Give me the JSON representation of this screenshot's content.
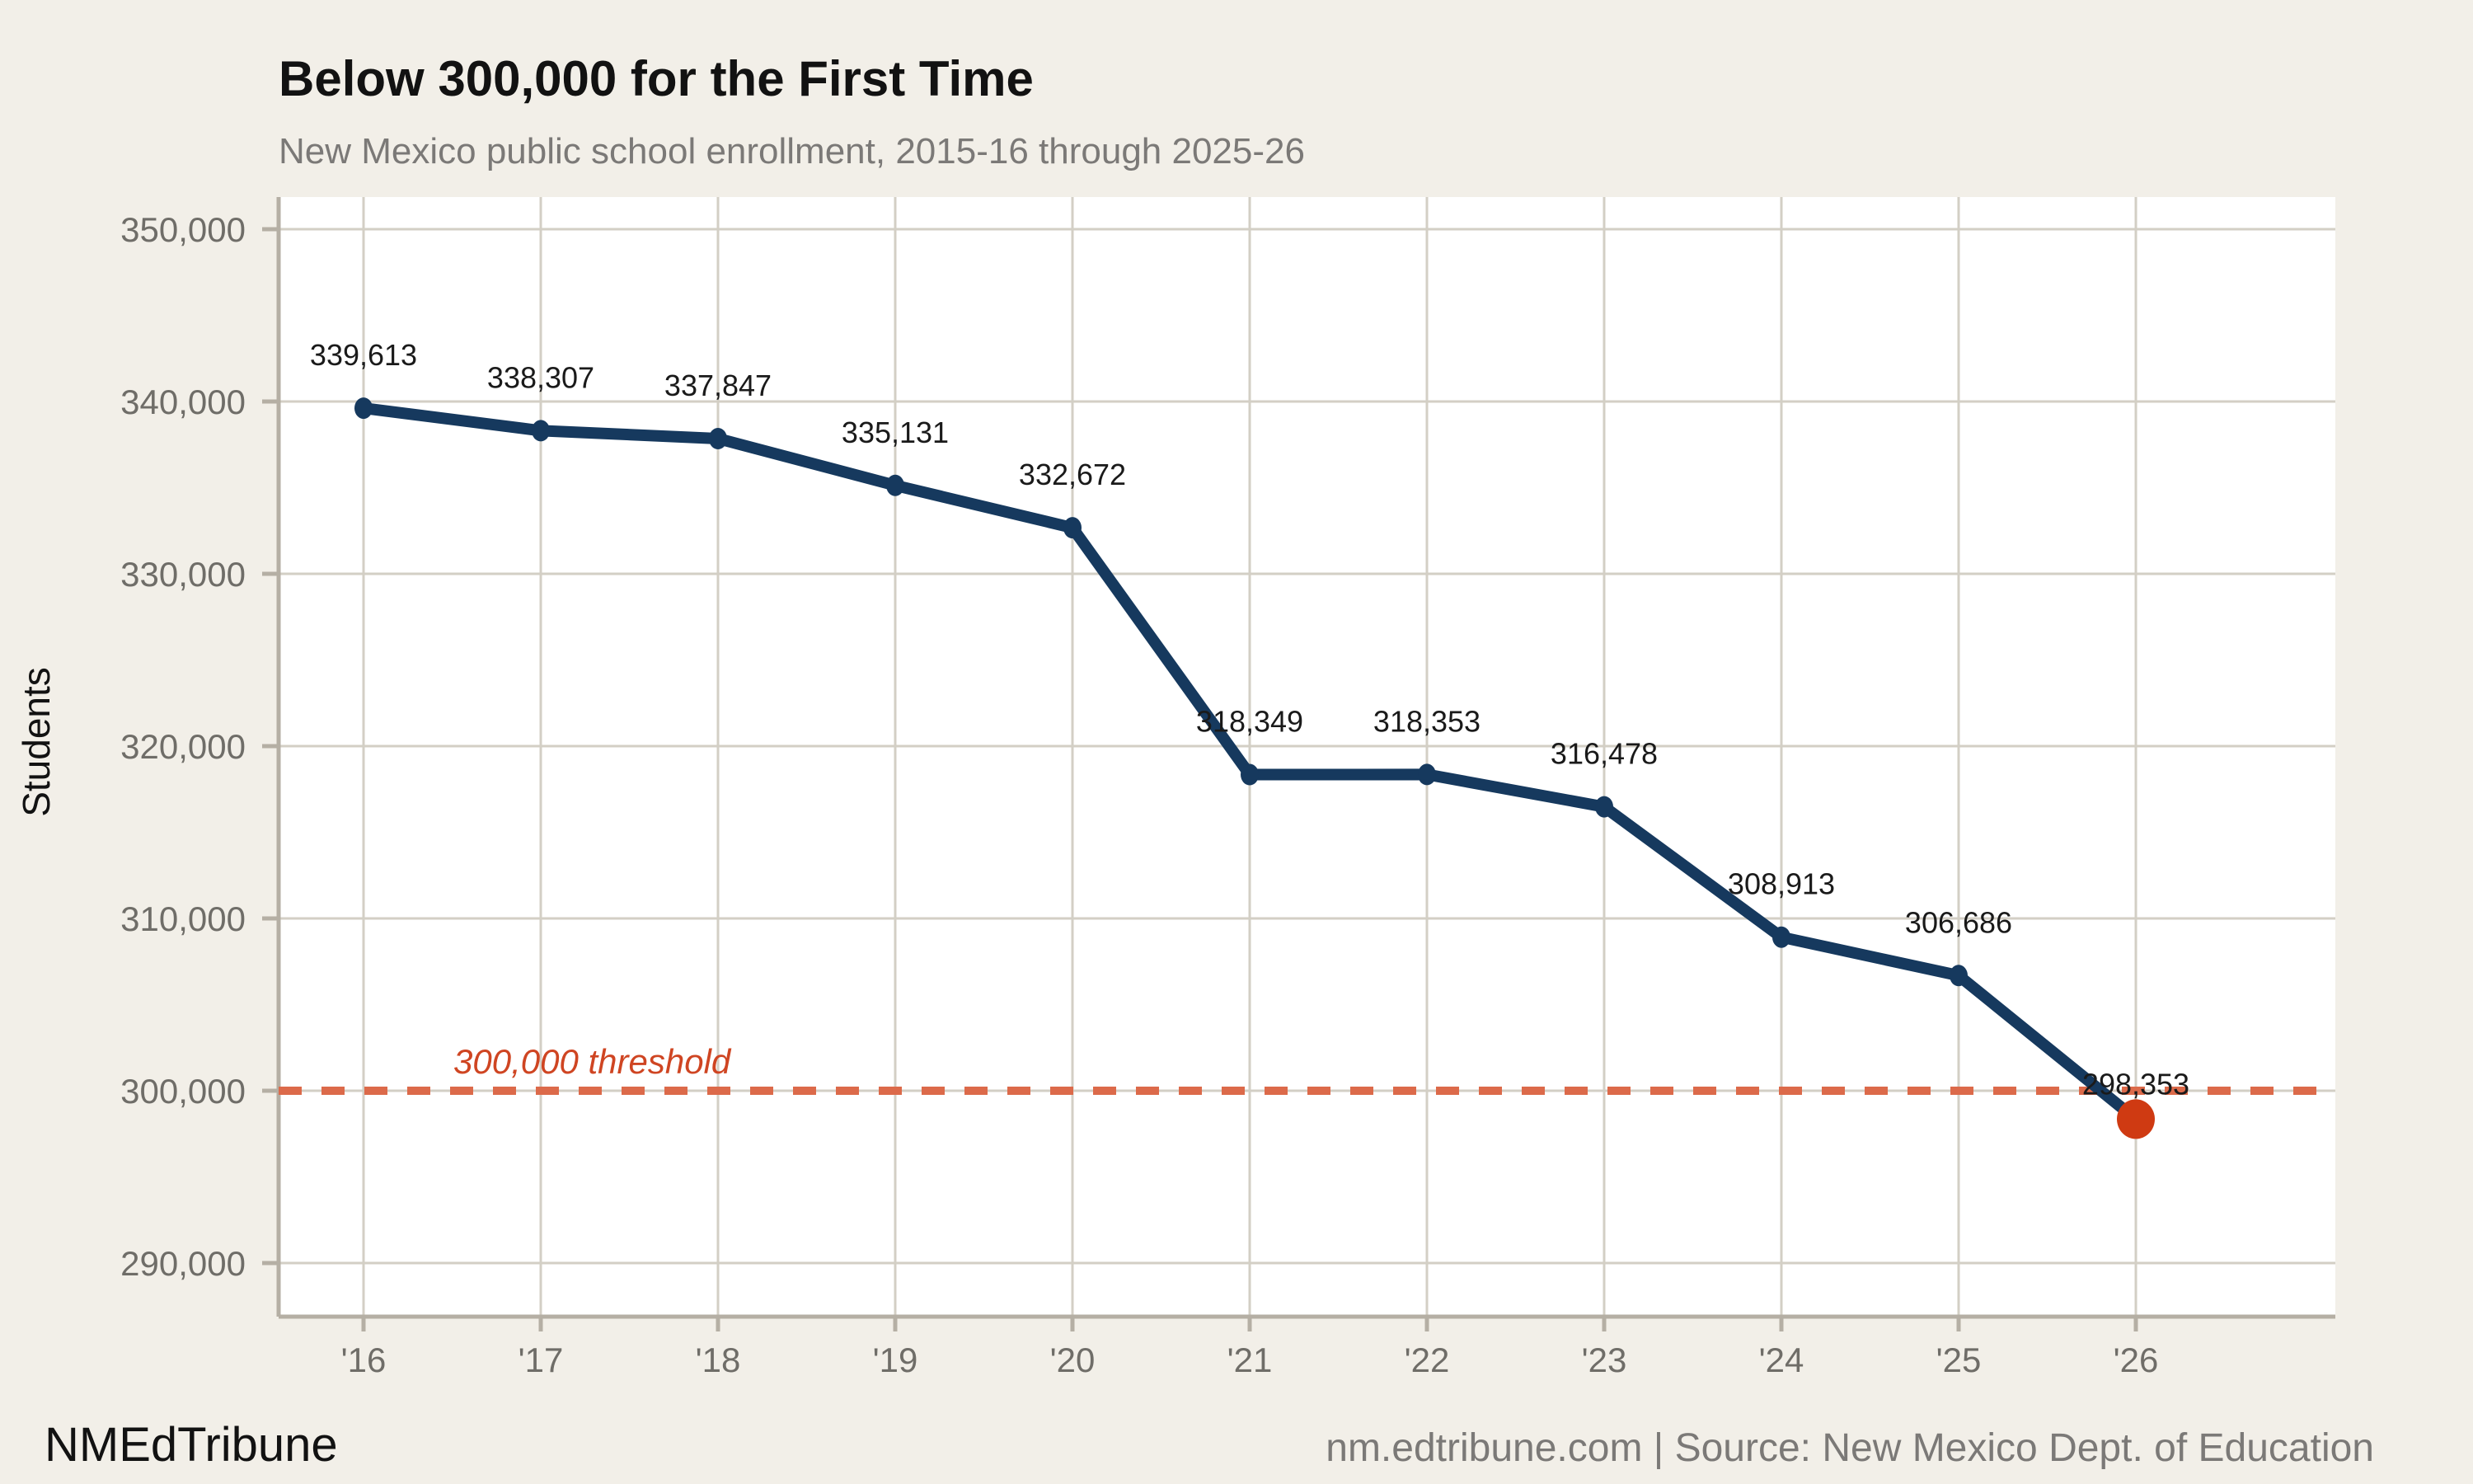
{
  "header": {
    "title": "Below 300,000 for the First Time",
    "subtitle": "New Mexico public school enrollment, 2015-16 through 2025-26"
  },
  "footer": {
    "brand": "NMEdTribune",
    "source": "nm.edtribune.com | Source: New Mexico Dept. of Education"
  },
  "chart_data": {
    "type": "line",
    "title": "Below 300,000 for the First Time",
    "subtitle": "New Mexico public school enrollment, 2015-16 through 2025-26",
    "xlabel": "",
    "ylabel": "Students",
    "categories": [
      "'16",
      "'17",
      "'18",
      "'19",
      "'20",
      "'21",
      "'22",
      "'23",
      "'24",
      "'25",
      "'26"
    ],
    "values": [
      339613,
      338307,
      337847,
      335131,
      332672,
      318349,
      318353,
      316478,
      308913,
      306686,
      298353
    ],
    "point_labels": [
      "339,613",
      "338,307",
      "337,847",
      "335,131",
      "332,672",
      "318,349",
      "318,353",
      "316,478",
      "308,913",
      "306,686",
      "298,353"
    ],
    "y_ticks": [
      290000,
      300000,
      310000,
      320000,
      330000,
      340000,
      350000
    ],
    "y_tick_labels": [
      "290,000",
      "300,000",
      "310,000",
      "320,000",
      "330,000",
      "340,000",
      "350,000"
    ],
    "ylim": [
      290000,
      350000
    ],
    "grid": true,
    "legend": "none",
    "threshold": {
      "value": 300000,
      "label": "300,000 threshold"
    },
    "highlight_last_point": true,
    "colors": {
      "line": "#16395e",
      "point": "#16395e",
      "last_point": "#cf3a12",
      "threshold_line": "#dc6a4a",
      "threshold_text": "#cf4522",
      "grid": "#d3cfc5",
      "axis": "#b5afa4",
      "background": "#f2efe8",
      "plot_background": "#ffffff"
    }
  }
}
